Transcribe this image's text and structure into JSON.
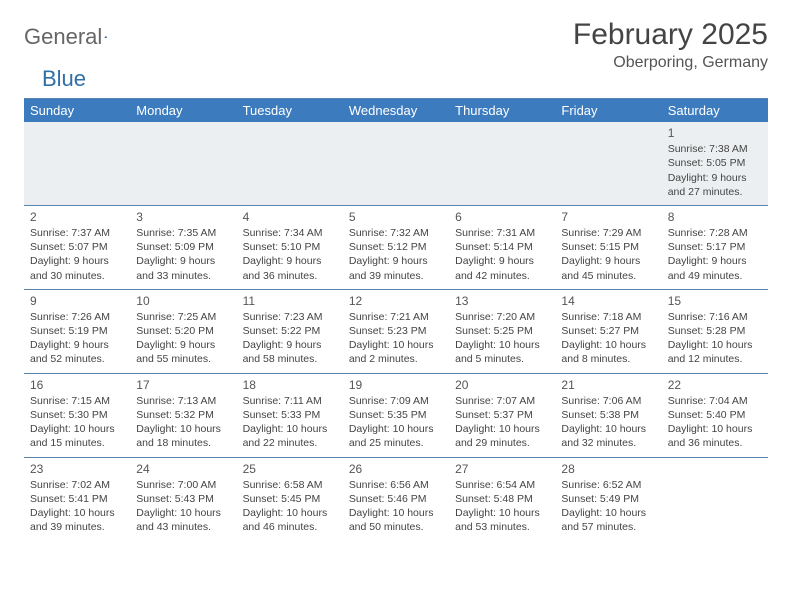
{
  "logo": {
    "part1": "General",
    "part2": "Blue"
  },
  "title": {
    "month": "February 2025",
    "location": "Oberporing, Germany"
  },
  "colors": {
    "header_bg": "#3d7bbf",
    "header_text": "#ffffff",
    "border": "#5b83b0",
    "body_text": "#444444",
    "logo_blue": "#2f6fa8",
    "first_row_bg": "#eceff1"
  },
  "day_labels": [
    "Sunday",
    "Monday",
    "Tuesday",
    "Wednesday",
    "Thursday",
    "Friday",
    "Saturday"
  ],
  "weeks": [
    [
      null,
      null,
      null,
      null,
      null,
      null,
      {
        "n": "1",
        "sr": "Sunrise: 7:38 AM",
        "ss": "Sunset: 5:05 PM",
        "d1": "Daylight: 9 hours",
        "d2": "and 27 minutes."
      }
    ],
    [
      {
        "n": "2",
        "sr": "Sunrise: 7:37 AM",
        "ss": "Sunset: 5:07 PM",
        "d1": "Daylight: 9 hours",
        "d2": "and 30 minutes."
      },
      {
        "n": "3",
        "sr": "Sunrise: 7:35 AM",
        "ss": "Sunset: 5:09 PM",
        "d1": "Daylight: 9 hours",
        "d2": "and 33 minutes."
      },
      {
        "n": "4",
        "sr": "Sunrise: 7:34 AM",
        "ss": "Sunset: 5:10 PM",
        "d1": "Daylight: 9 hours",
        "d2": "and 36 minutes."
      },
      {
        "n": "5",
        "sr": "Sunrise: 7:32 AM",
        "ss": "Sunset: 5:12 PM",
        "d1": "Daylight: 9 hours",
        "d2": "and 39 minutes."
      },
      {
        "n": "6",
        "sr": "Sunrise: 7:31 AM",
        "ss": "Sunset: 5:14 PM",
        "d1": "Daylight: 9 hours",
        "d2": "and 42 minutes."
      },
      {
        "n": "7",
        "sr": "Sunrise: 7:29 AM",
        "ss": "Sunset: 5:15 PM",
        "d1": "Daylight: 9 hours",
        "d2": "and 45 minutes."
      },
      {
        "n": "8",
        "sr": "Sunrise: 7:28 AM",
        "ss": "Sunset: 5:17 PM",
        "d1": "Daylight: 9 hours",
        "d2": "and 49 minutes."
      }
    ],
    [
      {
        "n": "9",
        "sr": "Sunrise: 7:26 AM",
        "ss": "Sunset: 5:19 PM",
        "d1": "Daylight: 9 hours",
        "d2": "and 52 minutes."
      },
      {
        "n": "10",
        "sr": "Sunrise: 7:25 AM",
        "ss": "Sunset: 5:20 PM",
        "d1": "Daylight: 9 hours",
        "d2": "and 55 minutes."
      },
      {
        "n": "11",
        "sr": "Sunrise: 7:23 AM",
        "ss": "Sunset: 5:22 PM",
        "d1": "Daylight: 9 hours",
        "d2": "and 58 minutes."
      },
      {
        "n": "12",
        "sr": "Sunrise: 7:21 AM",
        "ss": "Sunset: 5:23 PM",
        "d1": "Daylight: 10 hours",
        "d2": "and 2 minutes."
      },
      {
        "n": "13",
        "sr": "Sunrise: 7:20 AM",
        "ss": "Sunset: 5:25 PM",
        "d1": "Daylight: 10 hours",
        "d2": "and 5 minutes."
      },
      {
        "n": "14",
        "sr": "Sunrise: 7:18 AM",
        "ss": "Sunset: 5:27 PM",
        "d1": "Daylight: 10 hours",
        "d2": "and 8 minutes."
      },
      {
        "n": "15",
        "sr": "Sunrise: 7:16 AM",
        "ss": "Sunset: 5:28 PM",
        "d1": "Daylight: 10 hours",
        "d2": "and 12 minutes."
      }
    ],
    [
      {
        "n": "16",
        "sr": "Sunrise: 7:15 AM",
        "ss": "Sunset: 5:30 PM",
        "d1": "Daylight: 10 hours",
        "d2": "and 15 minutes."
      },
      {
        "n": "17",
        "sr": "Sunrise: 7:13 AM",
        "ss": "Sunset: 5:32 PM",
        "d1": "Daylight: 10 hours",
        "d2": "and 18 minutes."
      },
      {
        "n": "18",
        "sr": "Sunrise: 7:11 AM",
        "ss": "Sunset: 5:33 PM",
        "d1": "Daylight: 10 hours",
        "d2": "and 22 minutes."
      },
      {
        "n": "19",
        "sr": "Sunrise: 7:09 AM",
        "ss": "Sunset: 5:35 PM",
        "d1": "Daylight: 10 hours",
        "d2": "and 25 minutes."
      },
      {
        "n": "20",
        "sr": "Sunrise: 7:07 AM",
        "ss": "Sunset: 5:37 PM",
        "d1": "Daylight: 10 hours",
        "d2": "and 29 minutes."
      },
      {
        "n": "21",
        "sr": "Sunrise: 7:06 AM",
        "ss": "Sunset: 5:38 PM",
        "d1": "Daylight: 10 hours",
        "d2": "and 32 minutes."
      },
      {
        "n": "22",
        "sr": "Sunrise: 7:04 AM",
        "ss": "Sunset: 5:40 PM",
        "d1": "Daylight: 10 hours",
        "d2": "and 36 minutes."
      }
    ],
    [
      {
        "n": "23",
        "sr": "Sunrise: 7:02 AM",
        "ss": "Sunset: 5:41 PM",
        "d1": "Daylight: 10 hours",
        "d2": "and 39 minutes."
      },
      {
        "n": "24",
        "sr": "Sunrise: 7:00 AM",
        "ss": "Sunset: 5:43 PM",
        "d1": "Daylight: 10 hours",
        "d2": "and 43 minutes."
      },
      {
        "n": "25",
        "sr": "Sunrise: 6:58 AM",
        "ss": "Sunset: 5:45 PM",
        "d1": "Daylight: 10 hours",
        "d2": "and 46 minutes."
      },
      {
        "n": "26",
        "sr": "Sunrise: 6:56 AM",
        "ss": "Sunset: 5:46 PM",
        "d1": "Daylight: 10 hours",
        "d2": "and 50 minutes."
      },
      {
        "n": "27",
        "sr": "Sunrise: 6:54 AM",
        "ss": "Sunset: 5:48 PM",
        "d1": "Daylight: 10 hours",
        "d2": "and 53 minutes."
      },
      {
        "n": "28",
        "sr": "Sunrise: 6:52 AM",
        "ss": "Sunset: 5:49 PM",
        "d1": "Daylight: 10 hours",
        "d2": "and 57 minutes."
      },
      null
    ]
  ]
}
